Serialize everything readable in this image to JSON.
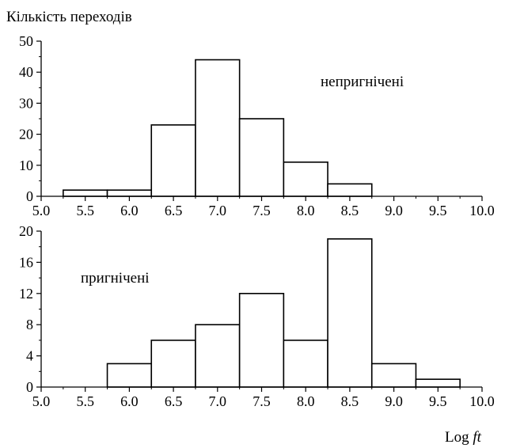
{
  "chart_data": [
    {
      "type": "bar",
      "ylabel": "Кількість переходів",
      "annotation": "непригнічені",
      "xlim": [
        5.0,
        10.0
      ],
      "ylim": [
        0,
        50
      ],
      "bin_width": 0.5,
      "bins": [
        {
          "x0": 5.25,
          "x1": 5.75,
          "value": 2
        },
        {
          "x0": 5.75,
          "x1": 6.25,
          "value": 2
        },
        {
          "x0": 6.25,
          "x1": 6.75,
          "value": 23
        },
        {
          "x0": 6.75,
          "x1": 7.25,
          "value": 44
        },
        {
          "x0": 7.25,
          "x1": 7.75,
          "value": 25
        },
        {
          "x0": 7.75,
          "x1": 8.25,
          "value": 11
        },
        {
          "x0": 8.25,
          "x1": 8.75,
          "value": 4
        }
      ],
      "x_ticks": [
        "5.0",
        "5.5",
        "6.0",
        "6.5",
        "7.0",
        "7.5",
        "8.0",
        "8.5",
        "9.0",
        "9.5",
        "10.0"
      ],
      "y_ticks": [
        "0",
        "10",
        "20",
        "30",
        "40",
        "50"
      ],
      "grid": false
    },
    {
      "type": "bar",
      "annotation": "пригнічені",
      "xlabel": "Log ft",
      "xlim": [
        5.0,
        10.0
      ],
      "ylim": [
        0,
        20
      ],
      "bin_width": 0.5,
      "bins": [
        {
          "x0": 5.75,
          "x1": 6.25,
          "value": 3
        },
        {
          "x0": 6.25,
          "x1": 6.75,
          "value": 6
        },
        {
          "x0": 6.75,
          "x1": 7.25,
          "value": 8
        },
        {
          "x0": 7.25,
          "x1": 7.75,
          "value": 12
        },
        {
          "x0": 7.75,
          "x1": 8.25,
          "value": 6
        },
        {
          "x0": 8.25,
          "x1": 8.75,
          "value": 19
        },
        {
          "x0": 8.75,
          "x1": 9.25,
          "value": 3
        },
        {
          "x0": 9.25,
          "x1": 9.75,
          "value": 1
        }
      ],
      "x_ticks": [
        "5.0",
        "5.5",
        "6.0",
        "6.5",
        "7.0",
        "7.5",
        "8.0",
        "8.5",
        "9.0",
        "9.5",
        "10.0"
      ],
      "y_ticks": [
        "0",
        "4",
        "8",
        "12",
        "16",
        "20"
      ],
      "grid": false
    }
  ]
}
